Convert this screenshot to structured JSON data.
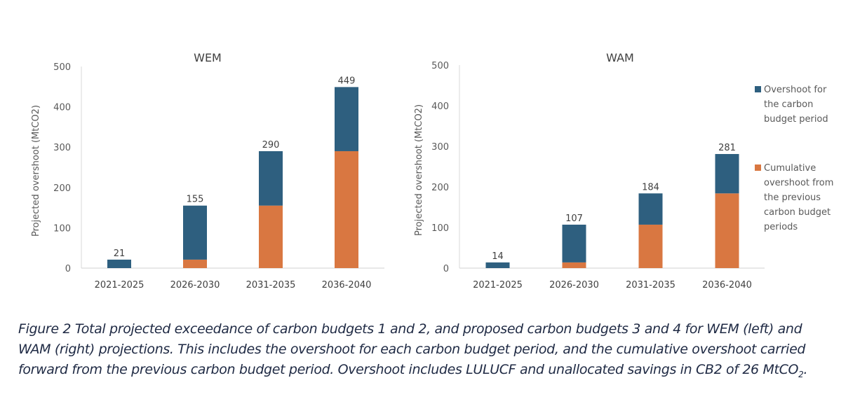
{
  "chart_data": [
    {
      "type": "bar",
      "stacked": true,
      "title": "WEM",
      "xlabel": "",
      "ylabel": "Projected overshoot (MtCO2)",
      "ylim": [
        0,
        500
      ],
      "yticks": [
        "0",
        "100",
        "200",
        "300",
        "400",
        "500"
      ],
      "categories": [
        "2021-2025",
        "2026-2030",
        "2031-2035",
        "2036-2040"
      ],
      "series": [
        {
          "name": "Cumulative overshoot from the previous carbon budget periods",
          "values": [
            0,
            21,
            155,
            290
          ]
        },
        {
          "name": "Overshoot for the carbon budget period",
          "values": [
            21,
            134,
            135,
            159
          ]
        }
      ],
      "totals": [
        21,
        155,
        290,
        449
      ],
      "total_labels": [
        "21",
        "155",
        "290",
        "449"
      ],
      "grid": false
    },
    {
      "type": "bar",
      "stacked": true,
      "title": "WAM",
      "xlabel": "",
      "ylabel": "Projected overshoot (MtCO2)",
      "ylim": [
        0,
        500
      ],
      "yticks": [
        "0",
        "100",
        "200",
        "300",
        "400",
        "500"
      ],
      "categories": [
        "2021-2025",
        "2026-2030",
        "2031-2035",
        "2036-2040"
      ],
      "series": [
        {
          "name": "Cumulative overshoot from the previous carbon budget periods",
          "values": [
            0,
            14,
            107,
            184
          ]
        },
        {
          "name": "Overshoot for the carbon budget period",
          "values": [
            14,
            93,
            77,
            97
          ]
        }
      ],
      "totals": [
        14,
        107,
        184,
        281
      ],
      "total_labels": [
        "14",
        "107",
        "184",
        "281"
      ],
      "grid": false,
      "legend": "right"
    }
  ],
  "colors": {
    "overshoot_period": "#2e5f7f",
    "cumulative_previous": "#d97741",
    "axis": "#d9d9d9",
    "tick_text": "#595959",
    "label_text": "#404040"
  },
  "legend": {
    "items": [
      {
        "lines": [
          "Overshoot for",
          "the carbon",
          "budget period"
        ],
        "color_key": "overshoot_period"
      },
      {
        "lines": [
          "Cumulative",
          "overshoot from",
          "the previous",
          "carbon budget",
          "periods"
        ],
        "color_key": "cumulative_previous"
      }
    ]
  },
  "caption": {
    "line1": "Figure 2 Total projected exceedance of carbon budgets 1 and 2, and proposed carbon budgets 3 and 4 for WEM (left) and",
    "line2": "WAM (right) projections. This includes the overshoot for each carbon budget period, and the cumulative overshoot carried",
    "line3_main": "forward from the previous carbon budget period. Overshoot includes LULUCF and unallocated savings in CB2 of 26 MtCO",
    "line3_sub": "2",
    "line3_end": "."
  }
}
